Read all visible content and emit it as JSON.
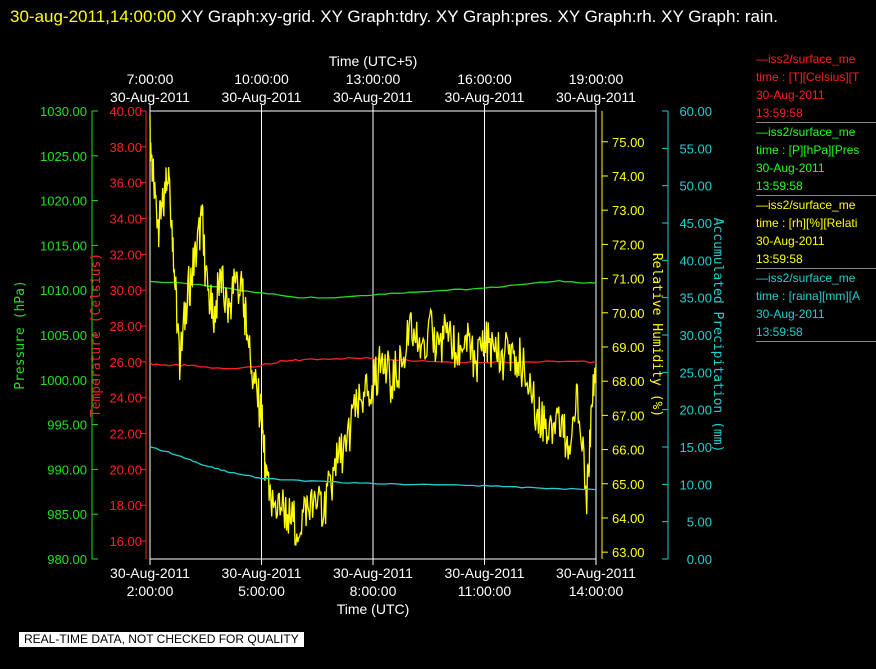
{
  "header": {
    "timestamp": "30-aug-2011,14:00:00",
    "graphs": " XY Graph:xy-grid.  XY Graph:tdry.  XY Graph:pres.  XY Graph:rh.  XY Graph: rain."
  },
  "stamp": "REAL-TIME DATA, NOT CHECKED FOR QUALITY",
  "legend": [
    {
      "source": "iss2/surface_me",
      "field": "time : [T][Celsius][T",
      "date": "30-Aug-2011",
      "time": "13:59:58",
      "color": "#ff2020"
    },
    {
      "source": "iss2/surface_me",
      "field": "time : [P][hPa][Pres",
      "date": "30-Aug-2011",
      "time": "13:59:58",
      "color": "#20ff20"
    },
    {
      "source": "iss2/surface_me",
      "field": "time : [rh][%][Relati",
      "date": "30-Aug-2011",
      "time": "13:59:58",
      "color": "#ffff00"
    },
    {
      "source": "iss2/surface_me",
      "field": "time : [raina][mm][A",
      "date": "30-Aug-2011",
      "time": "13:59:58",
      "color": "#20d0d0"
    }
  ],
  "chart_data": {
    "type": "line",
    "x_top_label": "Time (UTC+5)",
    "x_bottom_label": "Time (UTC)",
    "x_ticks_bottom": [
      {
        "date": "30-Aug-2011",
        "time": "2:00:00"
      },
      {
        "date": "30-Aug-2011",
        "time": "5:00:00"
      },
      {
        "date": "30-Aug-2011",
        "time": "8:00:00"
      },
      {
        "date": "30-Aug-2011",
        "time": "11:00:00"
      },
      {
        "date": "30-Aug-2011",
        "time": "14:00:00"
      }
    ],
    "x_ticks_top": [
      {
        "time": "7:00:00",
        "date": "30-Aug-2011"
      },
      {
        "time": "10:00:00",
        "date": "30-Aug-2011"
      },
      {
        "time": "13:00:00",
        "date": "30-Aug-2011"
      },
      {
        "time": "16:00:00",
        "date": "30-Aug-2011"
      },
      {
        "time": "19:00:00",
        "date": "30-Aug-2011"
      }
    ],
    "x_range_hours_utc": [
      2,
      14
    ],
    "grid": "vertical",
    "axes": {
      "pressure": {
        "label": "Pressure (hPa)",
        "range": [
          980,
          1030
        ],
        "ticks": [
          "980.00",
          "985.00",
          "990.00",
          "995.00",
          "1000.00",
          "1005.00",
          "1010.00",
          "1015.00",
          "1020.00",
          "1025.00",
          "1030.00"
        ],
        "color": "#20e020"
      },
      "temperature": {
        "label": "Temperature (Celsius)",
        "range": [
          15,
          40
        ],
        "ticks": [
          "16.00",
          "18.00",
          "20.00",
          "22.00",
          "24.00",
          "26.00",
          "28.00",
          "30.00",
          "32.00",
          "34.00",
          "36.00",
          "38.00",
          "40.00"
        ],
        "color": "#ff2020"
      },
      "humidity": {
        "label": "Relative Humidity (%)",
        "range": [
          62.8,
          75.9
        ],
        "ticks": [
          "63.00",
          "64.00",
          "65.00",
          "66.00",
          "67.00",
          "68.00",
          "69.00",
          "70.00",
          "71.00",
          "72.00",
          "73.00",
          "74.00",
          "75.00"
        ],
        "color": "#ffff00"
      },
      "precip": {
        "label": "Accumulated Precipitation (mm)",
        "range": [
          0,
          60
        ],
        "ticks": [
          "0.00",
          "5.00",
          "10.00",
          "15.00",
          "20.00",
          "25.00",
          "30.00",
          "35.00",
          "40.00",
          "45.00",
          "50.00",
          "55.00",
          "60.00"
        ],
        "color": "#20d0d0"
      }
    },
    "series": [
      {
        "name": "iss2/surface_me time : [T][Celsius][T",
        "axis": "temperature",
        "color": "#ff2020",
        "x": [
          2.0,
          2.5,
          3.0,
          4.0,
          5.0,
          5.5,
          6.0,
          7.0,
          8.0,
          9.0,
          10.0,
          11.0,
          12.0,
          13.0,
          14.0
        ],
        "y": [
          25.9,
          25.8,
          25.8,
          25.6,
          25.8,
          26.0,
          26.1,
          26.2,
          26.2,
          26.1,
          26.0,
          26.0,
          26.0,
          26.0,
          26.0
        ]
      },
      {
        "name": "iss2/surface_me time : [P][hPa][Pres",
        "axis": "pressure",
        "color": "#20e020",
        "x": [
          2.0,
          3.0,
          4.0,
          5.0,
          6.0,
          7.0,
          8.0,
          9.0,
          10.0,
          11.0,
          12.0,
          13.0,
          14.0
        ],
        "y": [
          1011.0,
          1010.7,
          1010.3,
          1009.7,
          1009.2,
          1009.2,
          1009.5,
          1009.8,
          1010.0,
          1010.2,
          1010.7,
          1011.0,
          1010.8
        ]
      },
      {
        "name": "iss2/surface_me time : [rh][%][Relati",
        "axis": "humidity",
        "color": "#ffff00",
        "x": [
          2.0,
          2.1,
          2.25,
          2.4,
          2.5,
          2.65,
          2.8,
          3.0,
          3.2,
          3.4,
          3.5,
          3.7,
          3.9,
          4.1,
          4.3,
          4.5,
          4.6,
          4.8,
          5.0,
          5.1,
          5.25,
          5.5,
          5.75,
          6.0,
          6.25,
          6.5,
          6.75,
          7.0,
          7.25,
          7.5,
          7.75,
          8.0,
          8.25,
          8.5,
          8.75,
          9.0,
          9.25,
          9.5,
          9.75,
          10.0,
          10.25,
          10.5,
          10.75,
          11.0,
          11.25,
          11.5,
          11.75,
          12.0,
          12.25,
          12.5,
          12.75,
          13.0,
          13.25,
          13.5,
          13.75,
          13.85,
          14.0
        ],
        "y": [
          75.2,
          73.7,
          72.5,
          73.4,
          74.5,
          71.3,
          68.5,
          70.5,
          71.5,
          72.8,
          71.0,
          69.8,
          71.0,
          70.0,
          71.0,
          70.5,
          69.5,
          68.0,
          67.0,
          65.5,
          64.3,
          64.5,
          64.0,
          63.8,
          64.4,
          64.2,
          64.5,
          65.5,
          66.2,
          67.0,
          67.5,
          68.0,
          68.5,
          68.0,
          68.5,
          69.5,
          69.0,
          69.5,
          69.0,
          69.5,
          68.8,
          69.3,
          68.5,
          69.2,
          69.0,
          68.7,
          69.0,
          68.5,
          67.5,
          67.0,
          66.5,
          67.2,
          66.0,
          67.5,
          64.5,
          66.5,
          68.5
        ]
      },
      {
        "name": "iss2/surface_me time : [raina][mm][A",
        "axis": "precip",
        "color": "#20d0d0",
        "x": [
          2.0,
          2.5,
          3.0,
          3.5,
          4.0,
          4.5,
          5.0,
          6.0,
          7.0,
          8.0,
          9.0,
          10.0,
          11.0,
          12.0,
          13.0,
          14.0
        ],
        "y": [
          15.0,
          14.3,
          13.4,
          12.5,
          11.8,
          11.3,
          10.8,
          10.5,
          10.3,
          10.1,
          10.0,
          9.9,
          9.8,
          9.6,
          9.4,
          9.3
        ]
      }
    ]
  }
}
